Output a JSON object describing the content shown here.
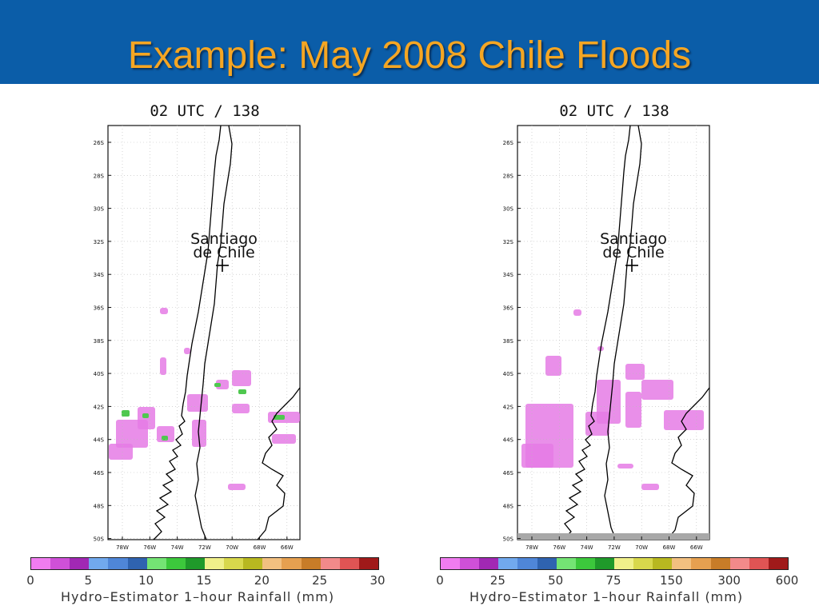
{
  "slide": {
    "title": "Example: May 2008 Chile Floods",
    "colors": {
      "header": "#0b5da8",
      "title": "#f5a623"
    }
  },
  "panels": [
    {
      "title": "02 UTC / 138",
      "city_label_line1": "Santiago",
      "city_label_line2": "de Chile",
      "lat_labels": [
        "26S",
        "28S",
        "30S",
        "32S",
        "34S",
        "36S",
        "38S",
        "40S",
        "42S",
        "44S",
        "46S",
        "48S",
        "50S"
      ],
      "lon_labels": [
        "78W",
        "76W",
        "74W",
        "72W",
        "70W",
        "68W",
        "66W"
      ],
      "colorbar_ticks": [
        "0",
        "5",
        "10",
        "15",
        "20",
        "25",
        "30"
      ],
      "colorbar_caption": "Hydro–Estimator 1–hour Rainfall (mm)"
    },
    {
      "title": "02 UTC / 138",
      "city_label_line1": "Santiago",
      "city_label_line2": "de Chile",
      "lat_labels": [
        "26S",
        "28S",
        "30S",
        "32S",
        "34S",
        "36S",
        "38S",
        "40S",
        "42S",
        "44S",
        "46S",
        "48S",
        "50S"
      ],
      "lon_labels": [
        "78W",
        "76W",
        "74W",
        "72W",
        "70W",
        "68W",
        "66W"
      ],
      "colorbar_ticks": [
        "0",
        "25",
        "50",
        "75",
        "150",
        "300",
        "600"
      ],
      "colorbar_caption": "Hydro–Estimator 1–hour Rainfall (mm)"
    }
  ],
  "colorbar_colors": [
    "#f07cf0",
    "#cf50d8",
    "#a128b4",
    "#71a9ee",
    "#4f86d8",
    "#2f63b0",
    "#74e474",
    "#3cc83c",
    "#1f9a2a",
    "#f0f08a",
    "#d8d84c",
    "#b8b820",
    "#f2c080",
    "#e6a050",
    "#c87c28",
    "#f28a8a",
    "#e05454",
    "#a01a1a"
  ]
}
